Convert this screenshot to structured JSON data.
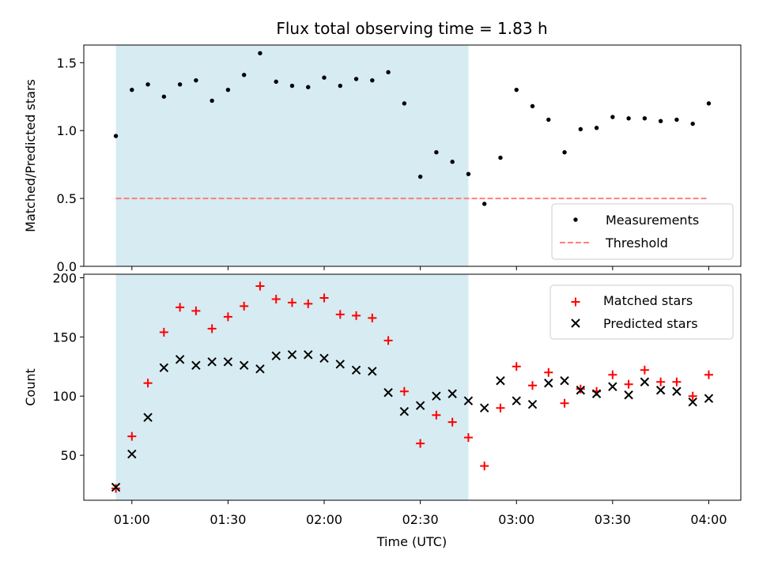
{
  "chart_data": [
    {
      "type": "scatter",
      "title": "Flux total observing time = 1.83 h",
      "ylabel": "Matched/Predicted stars",
      "ylim": [
        0,
        1.63
      ],
      "yticks": [
        0.0,
        0.5,
        1.0,
        1.5
      ],
      "ytick_labels": [
        "0.0",
        "0.5",
        "1.0",
        "1.5"
      ],
      "shaded_span": {
        "start": "00:55",
        "end": "02:45",
        "color": "#add8e6"
      },
      "threshold": {
        "name": "Threshold",
        "value": 0.5,
        "color": "#ff7f7f",
        "style": "dashed"
      },
      "series": [
        {
          "name": "Measurements",
          "marker": "dot",
          "color": "#000000",
          "x": [
            "00:55",
            "01:00",
            "01:05",
            "01:10",
            "01:15",
            "01:20",
            "01:25",
            "01:30",
            "01:35",
            "01:40",
            "01:45",
            "01:50",
            "01:55",
            "02:00",
            "02:05",
            "02:10",
            "02:15",
            "02:20",
            "02:25",
            "02:30",
            "02:35",
            "02:40",
            "02:45",
            "02:50",
            "02:55",
            "03:00",
            "03:05",
            "03:10",
            "03:15",
            "03:20",
            "03:25",
            "03:30",
            "03:35",
            "03:40",
            "03:45",
            "03:50",
            "03:55",
            "04:00"
          ],
          "y": [
            0.96,
            1.3,
            1.34,
            1.25,
            1.34,
            1.37,
            1.22,
            1.3,
            1.41,
            1.57,
            1.36,
            1.33,
            1.32,
            1.39,
            1.33,
            1.38,
            1.37,
            1.43,
            1.2,
            0.66,
            0.84,
            0.77,
            0.68,
            0.46,
            0.8,
            1.3,
            1.18,
            1.08,
            0.84,
            1.01,
            1.02,
            1.1,
            1.09,
            1.09,
            1.07,
            1.08,
            1.05,
            1.2
          ]
        }
      ],
      "legend": {
        "position": "lower-right",
        "entries": [
          "Measurements",
          "Threshold"
        ]
      }
    },
    {
      "type": "scatter",
      "xlabel": "Time (UTC)",
      "ylabel": "Count",
      "ylim": [
        12,
        203
      ],
      "yticks": [
        50,
        100,
        150,
        200
      ],
      "ytick_labels": [
        "50",
        "100",
        "150",
        "200"
      ],
      "xlim": [
        "00:45",
        "04:10"
      ],
      "xticks": [
        "01:00",
        "01:30",
        "02:00",
        "02:30",
        "03:00",
        "03:30",
        "04:00"
      ],
      "shaded_span": {
        "start": "00:55",
        "end": "02:45",
        "color": "#add8e6"
      },
      "series": [
        {
          "name": "Matched stars",
          "marker": "plus",
          "color": "#ff0000",
          "x": [
            "00:55",
            "01:00",
            "01:05",
            "01:10",
            "01:15",
            "01:20",
            "01:25",
            "01:30",
            "01:35",
            "01:40",
            "01:45",
            "01:50",
            "01:55",
            "02:00",
            "02:05",
            "02:10",
            "02:15",
            "02:20",
            "02:25",
            "02:30",
            "02:35",
            "02:40",
            "02:45",
            "02:50",
            "02:55",
            "03:00",
            "03:05",
            "03:10",
            "03:15",
            "03:20",
            "03:25",
            "03:30",
            "03:35",
            "03:40",
            "03:45",
            "03:50",
            "03:55",
            "04:00"
          ],
          "y": [
            22,
            66,
            111,
            154,
            175,
            172,
            157,
            167,
            176,
            193,
            182,
            179,
            178,
            183,
            169,
            168,
            166,
            147,
            104,
            60,
            84,
            78,
            65,
            41,
            90,
            125,
            109,
            120,
            94,
            106,
            104,
            118,
            110,
            122,
            112,
            112,
            100,
            118
          ]
        },
        {
          "name": "Predicted stars",
          "marker": "x",
          "color": "#000000",
          "x": [
            "00:55",
            "01:00",
            "01:05",
            "01:10",
            "01:15",
            "01:20",
            "01:25",
            "01:30",
            "01:35",
            "01:40",
            "01:45",
            "01:50",
            "01:55",
            "02:00",
            "02:05",
            "02:10",
            "02:15",
            "02:20",
            "02:25",
            "02:30",
            "02:35",
            "02:40",
            "02:45",
            "02:50",
            "02:55",
            "03:00",
            "03:05",
            "03:10",
            "03:15",
            "03:20",
            "03:25",
            "03:30",
            "03:35",
            "03:40",
            "03:45",
            "03:50",
            "03:55",
            "04:00"
          ],
          "y": [
            23,
            51,
            82,
            124,
            131,
            126,
            129,
            129,
            126,
            123,
            134,
            135,
            135,
            132,
            127,
            122,
            121,
            103,
            87,
            92,
            100,
            102,
            96,
            90,
            113,
            96,
            93,
            111,
            113,
            105,
            102,
            108,
            101,
            112,
            105,
            104,
            95,
            98
          ]
        }
      ],
      "legend": {
        "position": "upper-right",
        "entries": [
          "Matched stars",
          "Predicted stars"
        ]
      }
    }
  ]
}
